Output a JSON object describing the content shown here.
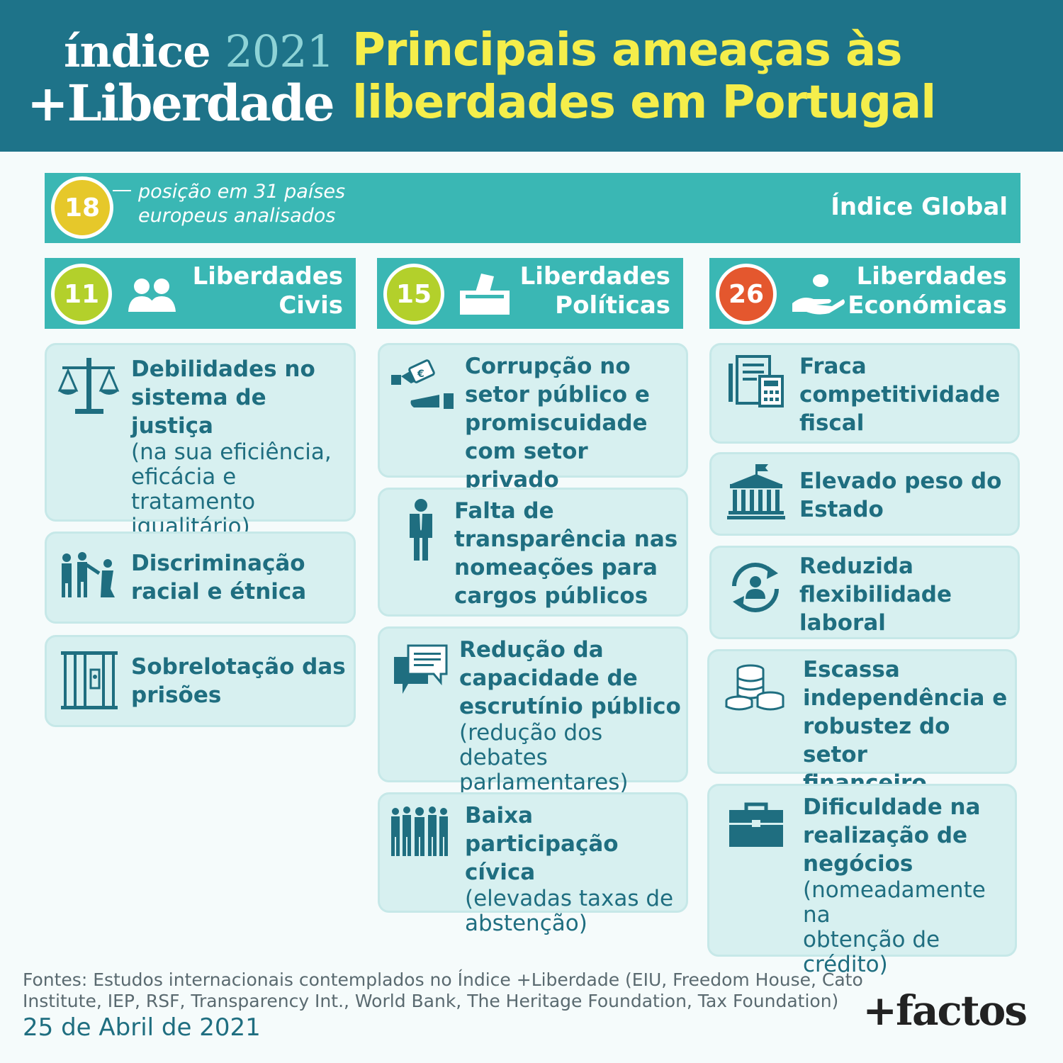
{
  "header": {
    "logo_line1_word": "índice",
    "logo_line1_year": "2021",
    "logo_line2": "+Liberdade",
    "title_line1": "Principais ameaças às",
    "title_line2": "liberdades em Portugal"
  },
  "global": {
    "rank": "18",
    "text_line1": "posição em 31 países",
    "text_line2": "europeus analisados",
    "label": "Índice Global",
    "badge_color": "#e6c82a"
  },
  "categories": [
    {
      "rank": "11",
      "label_line1": "Liberdades",
      "label_line2": "Civis",
      "badge_color": "#b3d02b",
      "icon": "people-icon"
    },
    {
      "rank": "15",
      "label_line1": "Liberdades",
      "label_line2": "Políticas",
      "badge_color": "#b3d02b",
      "icon": "ballot-box-icon"
    },
    {
      "rank": "26",
      "label_line1": "Liberdades",
      "label_line2": "Económicas",
      "badge_color": "#e4572e",
      "icon": "hand-coin-icon"
    }
  ],
  "civil": [
    {
      "bold_lines": [
        "Debilidades no",
        "sistema de justiça"
      ],
      "note_lines": [
        "(na sua eficiência,",
        "eficácia e",
        "tratamento",
        "igualitário)"
      ],
      "icon": "scales-icon"
    },
    {
      "bold_lines": [
        "Discriminação",
        "racial e étnica"
      ],
      "note_lines": [],
      "icon": "discrimination-icon"
    },
    {
      "bold_lines": [
        "Sobrelotação das",
        "prisões"
      ],
      "note_lines": [],
      "icon": "prison-bars-icon"
    }
  ],
  "political": [
    {
      "bold_lines": [
        "Corrupção no",
        "setor público e",
        "promiscuidade",
        "com setor privado"
      ],
      "note_lines": [],
      "icon": "bribe-icon"
    },
    {
      "bold_lines": [
        "Falta de",
        "transparência nas",
        "nomeações para",
        "cargos públicos"
      ],
      "note_lines": [],
      "icon": "official-icon"
    },
    {
      "bold_lines": [
        "Redução da",
        "capacidade de",
        "escrutínio público"
      ],
      "note_lines": [
        "(redução dos debates",
        "parlamentares)"
      ],
      "icon": "speech-bubbles-icon"
    },
    {
      "bold_lines": [
        "Baixa participação",
        "cívica"
      ],
      "note_lines": [
        "(elevadas taxas de",
        "abstenção)"
      ],
      "icon": "crowd-icon"
    }
  ],
  "economic": [
    {
      "bold_lines": [
        "Fraca",
        "competitividade",
        "fiscal"
      ],
      "note_lines": [],
      "icon": "tax-document-icon"
    },
    {
      "bold_lines": [
        "Elevado peso do",
        "Estado"
      ],
      "note_lines": [],
      "icon": "government-building-icon"
    },
    {
      "bold_lines": [
        "Reduzida",
        "flexibilidade",
        "laboral"
      ],
      "note_lines": [],
      "icon": "worker-cycle-icon"
    },
    {
      "bold_lines": [
        "Escassa",
        "independência e",
        "robustez do setor",
        "financeiro"
      ],
      "note_lines": [],
      "icon": "coin-stacks-icon"
    },
    {
      "bold_lines": [
        "Dificuldade na",
        "realização de",
        "negócios"
      ],
      "note_lines": [
        "(nomeadamente na",
        "obtenção de",
        "crédito)"
      ],
      "icon": "briefcase-icon"
    }
  ],
  "footer": {
    "sources_line1": "Fontes: Estudos internacionais contemplados no Índice +Liberdade (EIU, Freedom House, Cato",
    "sources_line2": "Institute, IEP, RSF, Transparency Int., World Bank, The Heritage Foundation, Tax Foundation)",
    "date": "25 de Abril de 2021",
    "brand": "+factos"
  },
  "colors": {
    "header_bg": "#1e7389",
    "title": "#f5ee4b",
    "bar": "#3ab7b4",
    "card_bg": "#d7f0f0",
    "text": "#1f6e80"
  }
}
